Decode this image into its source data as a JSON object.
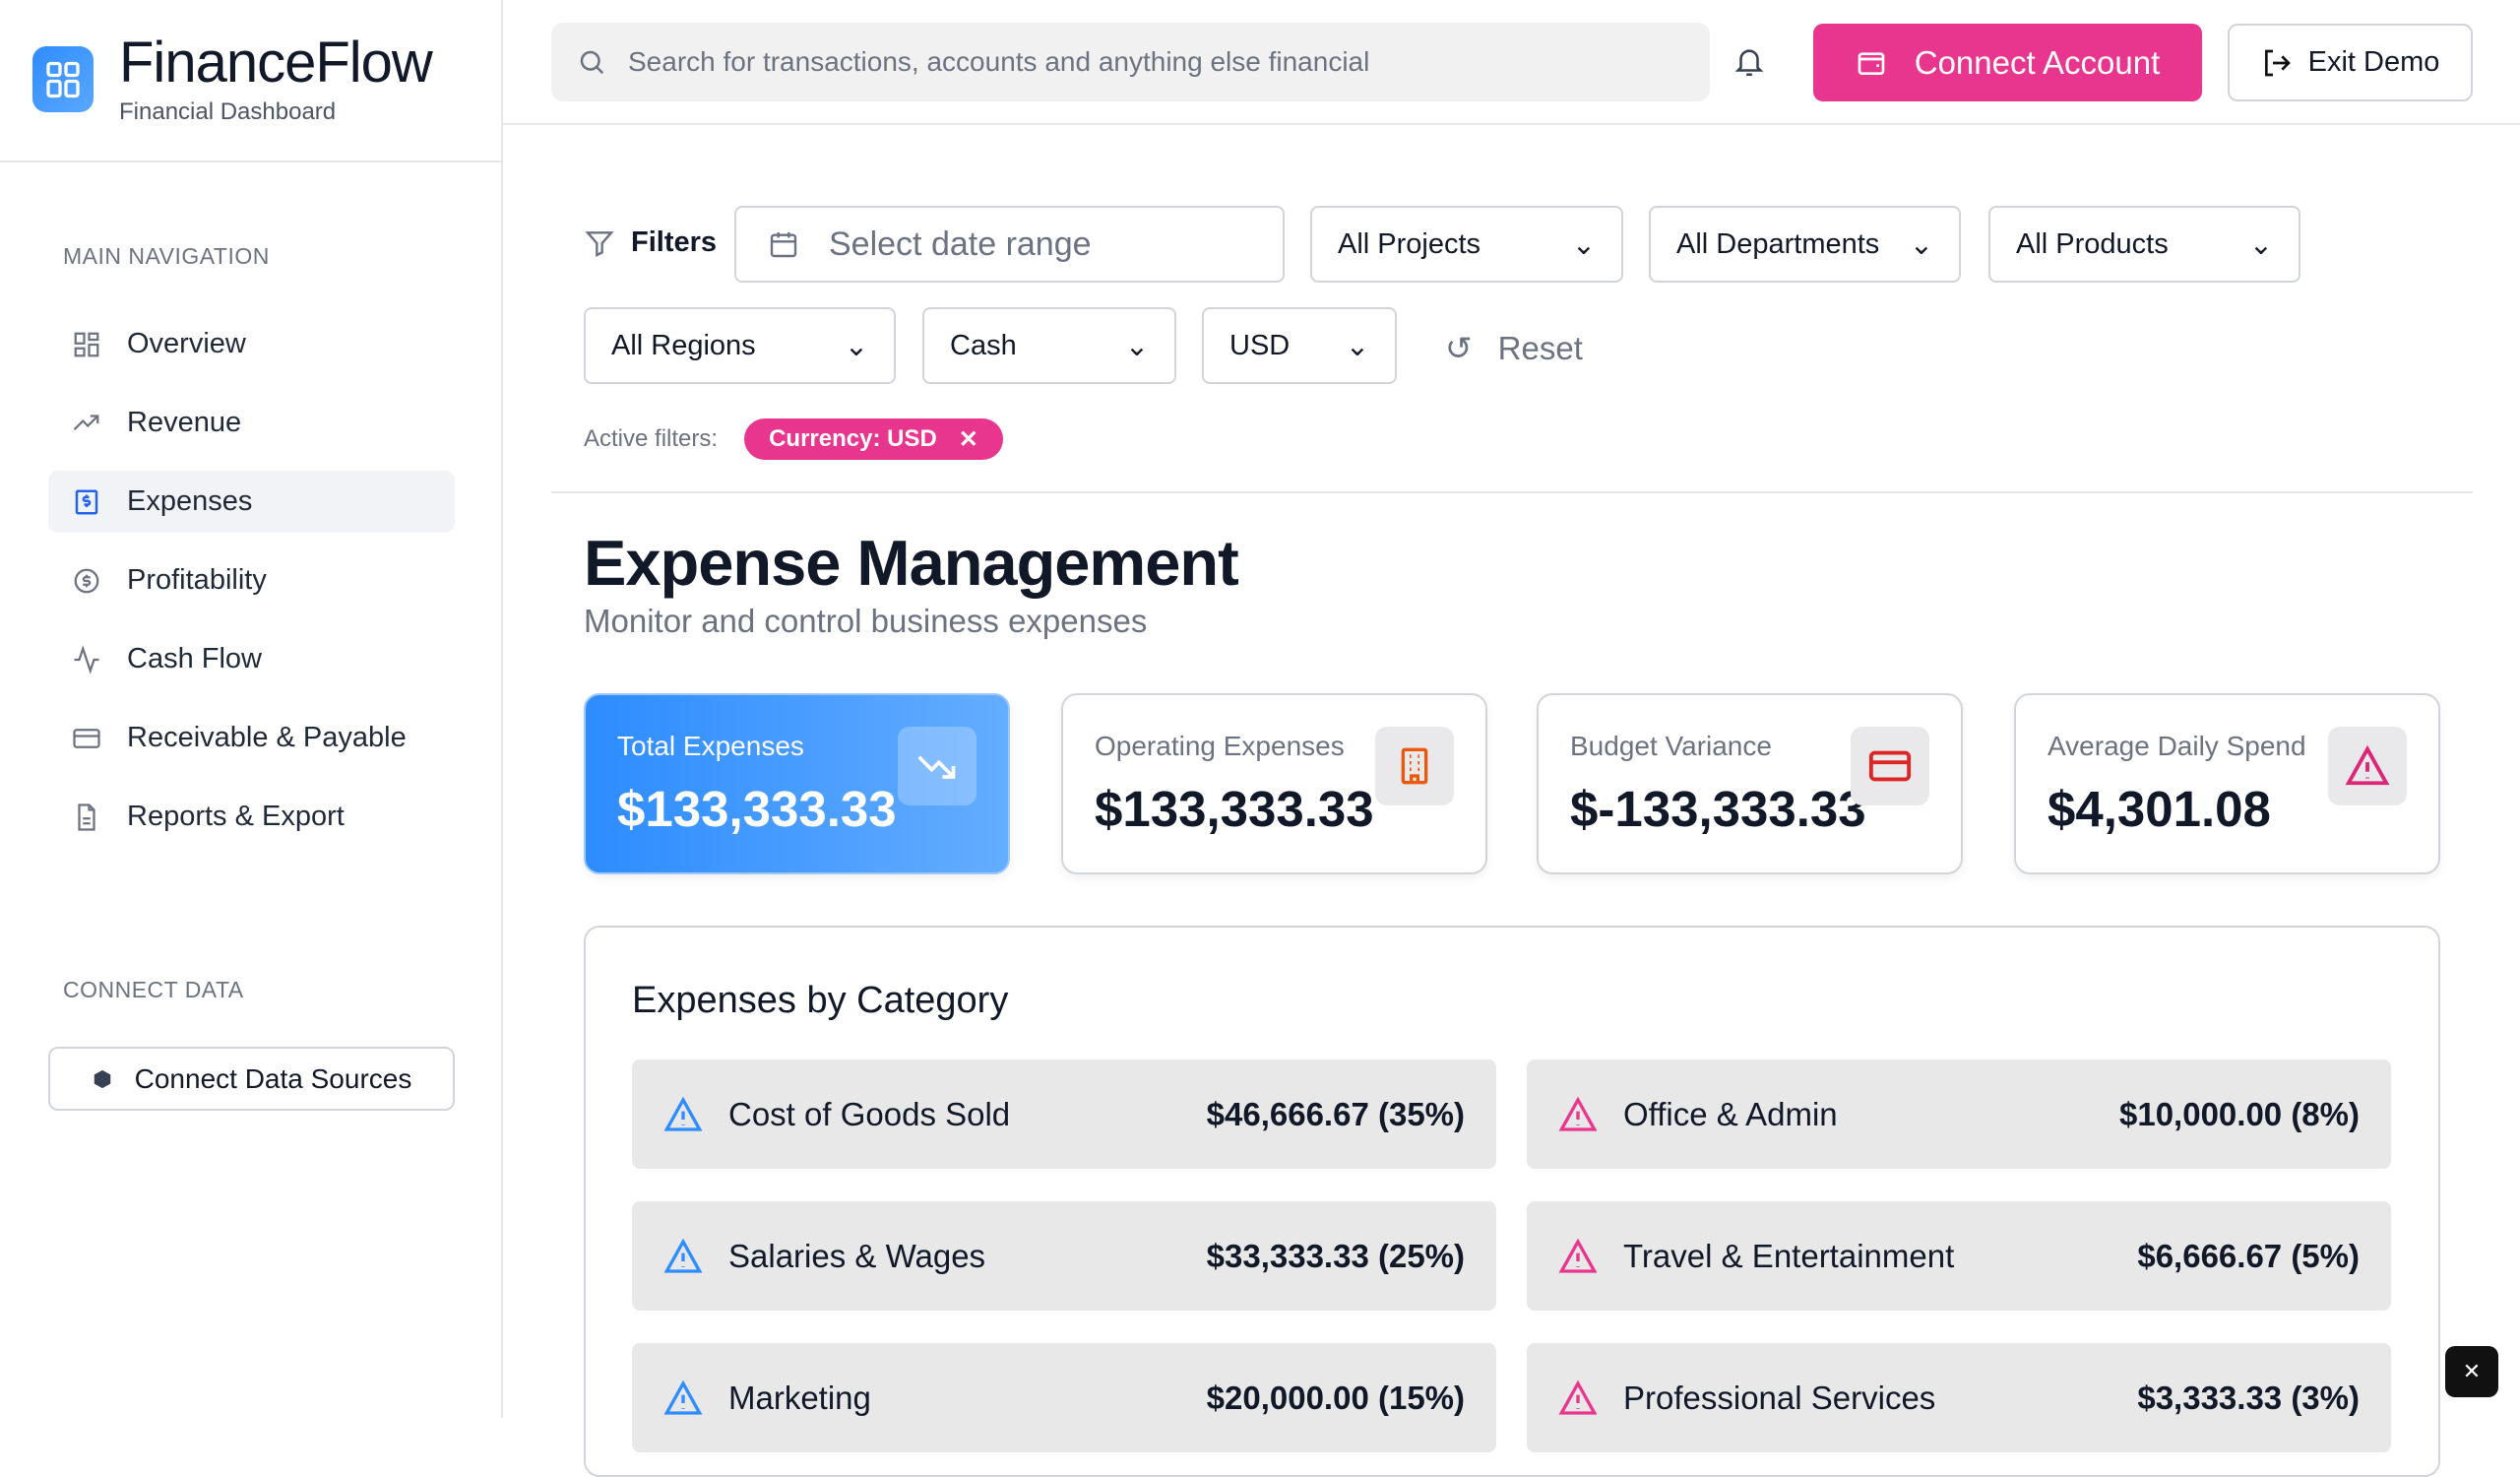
{
  "brand": {
    "name": "FinanceFlow",
    "subtitle": "Financial Dashboard"
  },
  "sidebar": {
    "main_heading": "MAIN NAVIGATION",
    "items": [
      {
        "label": "Overview",
        "icon": "grid-icon"
      },
      {
        "label": "Revenue",
        "icon": "trending-up-icon"
      },
      {
        "label": "Expenses",
        "icon": "receipt-dollar-icon",
        "active": true
      },
      {
        "label": "Profitability",
        "icon": "dollar-circle-icon"
      },
      {
        "label": "Cash Flow",
        "icon": "activity-icon"
      },
      {
        "label": "Receivable & Payable",
        "icon": "credit-card-icon"
      },
      {
        "label": "Reports & Export",
        "icon": "file-text-icon"
      }
    ],
    "connect_heading": "CONNECT DATA",
    "connect_button": "Connect Data Sources"
  },
  "header": {
    "search_placeholder": "Search for transactions, accounts and anything else financial",
    "connect_account": "Connect Account",
    "exit_demo": "Exit Demo"
  },
  "filters": {
    "label": "Filters",
    "date_placeholder": "Select date range",
    "projects": "All Projects",
    "departments": "All Departments",
    "products": "All Products",
    "regions": "All Regions",
    "cash": "Cash",
    "currency": "USD",
    "reset": "Reset",
    "active_label": "Active filters:",
    "active_chip": "Currency: USD"
  },
  "page": {
    "title": "Expense Management",
    "subtitle": "Monitor and control business expenses"
  },
  "cards": [
    {
      "label": "Total Expenses",
      "value": "$133,333.33",
      "icon": "trending-down-icon"
    },
    {
      "label": "Operating Expenses",
      "value": "$133,333.33",
      "icon": "building-icon",
      "color": "#ea580c"
    },
    {
      "label": "Budget Variance",
      "value": "$-133,333.33",
      "icon": "credit-card-icon",
      "color": "#dc2626"
    },
    {
      "label": "Average Daily Spend",
      "value": "$4,301.08",
      "icon": "alert-triangle-icon",
      "color": "#db2777"
    }
  ],
  "categories": {
    "title": "Expenses by Category",
    "items": [
      {
        "name": "Cost of Goods Sold",
        "amount": "$46,666.67 (35%)",
        "color": "#2f8cff"
      },
      {
        "name": "Office & Admin",
        "amount": "$10,000.00 (8%)",
        "color": "#e8368f"
      },
      {
        "name": "Salaries & Wages",
        "amount": "$33,333.33 (25%)",
        "color": "#2f8cff"
      },
      {
        "name": "Travel & Entertainment",
        "amount": "$6,666.67 (5%)",
        "color": "#e8368f"
      },
      {
        "name": "Marketing",
        "amount": "$20,000.00 (15%)",
        "color": "#2f8cff"
      },
      {
        "name": "Professional Services",
        "amount": "$3,333.33 (3%)",
        "color": "#e8368f"
      }
    ]
  }
}
